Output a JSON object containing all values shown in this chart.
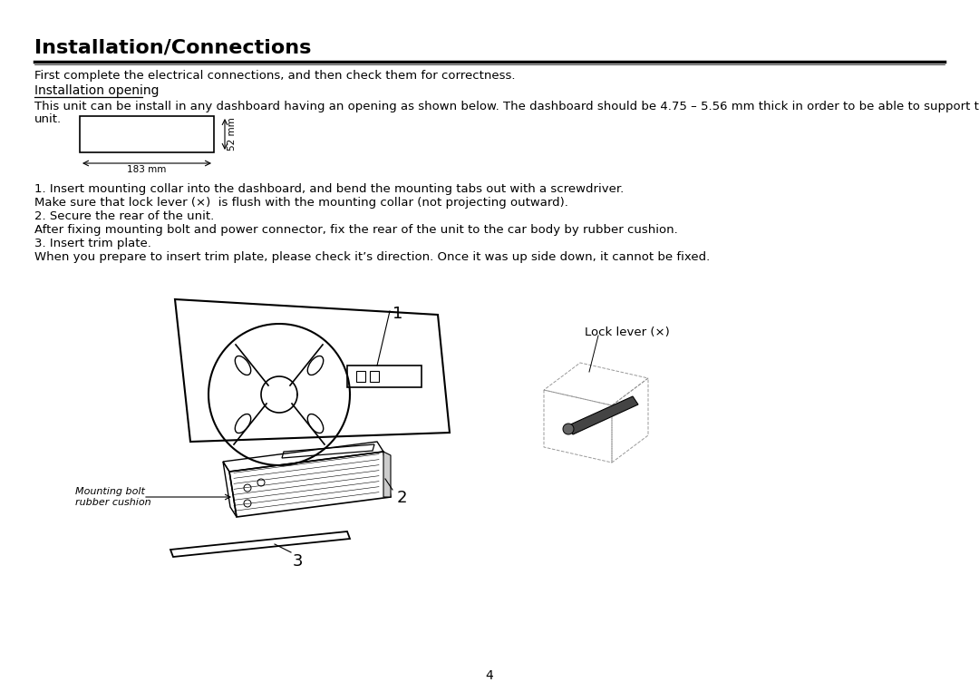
{
  "title": "Installation/Connections",
  "subtitle": "First complete the electrical connections, and then check them for correctness.",
  "section_heading": "Installation opening",
  "para1_line1": "This unit can be install in any dashboard having an opening as shown below. The dashboard should be 4.75 – 5.56 mm thick in order to be able to support the",
  "para1_line2": "unit.",
  "dim_width_label": "183 mm",
  "dim_height_label": "52 mm",
  "instructions": [
    "1. Insert mounting collar into the dashboard, and bend the mounting tabs out with a screwdriver.",
    "Make sure that lock lever (×)  is flush with the mounting collar (not projecting outward).",
    "2. Secure the rear of the unit.",
    "After fixing mounting bolt and power connector, fix the rear of the unit to the car body by rubber cushion.",
    "3. Insert trim plate.",
    "When you prepare to insert trim plate, please check it’s direction. Once it was up side down, it cannot be fixed."
  ],
  "label_mounting": "Mounting bolt\nrubber cushion",
  "label_lock": "Lock lever (×)",
  "page_number": "4",
  "bg_color": "#ffffff",
  "text_color": "#000000",
  "title_fontsize": 16,
  "body_fontsize": 9.5,
  "heading_fontsize": 10
}
